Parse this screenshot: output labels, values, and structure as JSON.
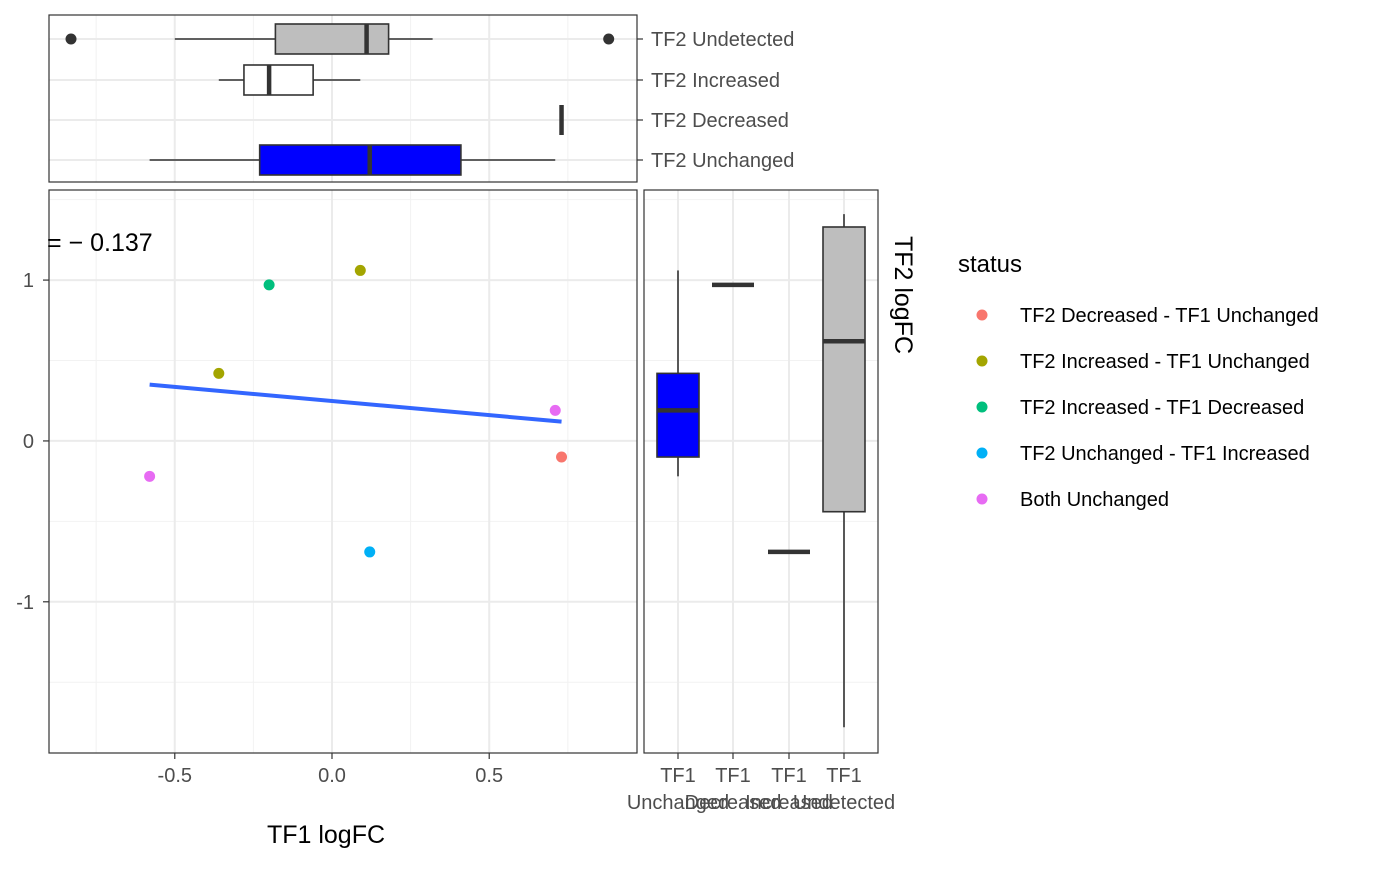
{
  "chart_data": [
    {
      "type": "scatter",
      "panel": "main",
      "xlabel": "TF1 logFC",
      "ylabel": "TF2 logFC",
      "annotation": "= − 0.137",
      "xlim": [
        -0.9,
        0.97
      ],
      "ylim": [
        -1.94,
        1.56
      ],
      "x_ticks": [
        -0.5,
        0.0,
        0.5
      ],
      "x_tick_labels": [
        "-0.5",
        "0.0",
        "0.5"
      ],
      "y_ticks": [
        -1,
        0,
        1
      ],
      "y_tick_labels": [
        "-1",
        "0",
        "1"
      ],
      "grid": true,
      "points": [
        {
          "x": 0.09,
          "y": 1.06,
          "status": "TF2 Increased - TF1 Unchanged"
        },
        {
          "x": -0.36,
          "y": 0.42,
          "status": "TF2 Increased - TF1 Unchanged"
        },
        {
          "x": -0.2,
          "y": 0.97,
          "status": "TF2 Increased - TF1 Decreased"
        },
        {
          "x": 0.71,
          "y": 0.19,
          "status": "Both Unchanged"
        },
        {
          "x": -0.58,
          "y": -0.22,
          "status": "Both Unchanged"
        },
        {
          "x": 0.73,
          "y": -0.1,
          "status": "TF2 Decreased - TF1 Unchanged"
        },
        {
          "x": 0.12,
          "y": -0.69,
          "status": "TF2 Unchanged - TF1 Increased"
        }
      ],
      "fit_line": {
        "x": [
          -0.58,
          0.73
        ],
        "y": [
          0.35,
          0.12
        ],
        "color": "#3366ff"
      }
    },
    {
      "type": "boxplot",
      "panel": "top-marginal",
      "axis": "TF1 logFC",
      "categories": [
        "TF2 Undetected",
        "TF2 Increased",
        "TF2 Decreased",
        "TF2 Unchanged"
      ],
      "boxes": [
        {
          "min": -0.5,
          "q1": -0.18,
          "median": 0.11,
          "q3": 0.18,
          "max": 0.32,
          "outliers": [
            -0.83,
            0.88
          ],
          "fill": "#bebebe"
        },
        {
          "min": -0.36,
          "q1": -0.28,
          "median": -0.2,
          "q3": -0.06,
          "max": 0.09,
          "outliers": [],
          "fill": "#ffffff"
        },
        {
          "min": 0.73,
          "q1": 0.73,
          "median": 0.73,
          "q3": 0.73,
          "max": 0.73,
          "outliers": [],
          "fill": "#ffffff"
        },
        {
          "min": -0.58,
          "q1": -0.23,
          "median": 0.12,
          "q3": 0.41,
          "max": 0.71,
          "outliers": [],
          "fill": "#0000ff"
        }
      ]
    },
    {
      "type": "boxplot",
      "panel": "right-marginal",
      "axis": "TF2 logFC",
      "categories": [
        "TF1 Unchanged",
        "TF1 Decreased",
        "TF1 Increased",
        "TF1 Undetected"
      ],
      "category_lines": [
        [
          "TF1",
          "Unchanged"
        ],
        [
          "TF1",
          "Decreased"
        ],
        [
          "TF1",
          "Increased"
        ],
        [
          "TF1",
          "Undetected"
        ]
      ],
      "boxes": [
        {
          "min": -0.22,
          "q1": -0.1,
          "median": 0.19,
          "q3": 0.42,
          "max": 1.06,
          "outliers": [],
          "fill": "#0000ff"
        },
        {
          "min": 0.97,
          "q1": 0.97,
          "median": 0.97,
          "q3": 0.97,
          "max": 0.97,
          "outliers": [],
          "fill": "#ffffff"
        },
        {
          "min": -0.69,
          "q1": -0.69,
          "median": -0.69,
          "q3": -0.69,
          "max": -0.69,
          "outliers": [],
          "fill": "#ffffff"
        },
        {
          "min": -1.78,
          "q1": -0.44,
          "median": 0.62,
          "q3": 1.33,
          "max": 1.41,
          "outliers": [],
          "fill": "#bebebe"
        }
      ]
    }
  ],
  "legend": {
    "title": "status",
    "items": [
      {
        "label": "TF2 Decreased - TF1 Unchanged",
        "color": "#f8766d"
      },
      {
        "label": "TF2 Increased - TF1 Unchanged",
        "color": "#a3a500"
      },
      {
        "label": "TF2 Increased - TF1 Decreased",
        "color": "#00bf7d"
      },
      {
        "label": "TF2 Unchanged - TF1 Increased",
        "color": "#00b0f6"
      },
      {
        "label": "Both Unchanged",
        "color": "#e76bf3"
      }
    ]
  },
  "colors": {
    "grid_major": "#ebebeb",
    "grid_minor": "#f2f2f2",
    "panel_border": "#333333",
    "box_line": "#333333",
    "outlier": "#333333"
  }
}
